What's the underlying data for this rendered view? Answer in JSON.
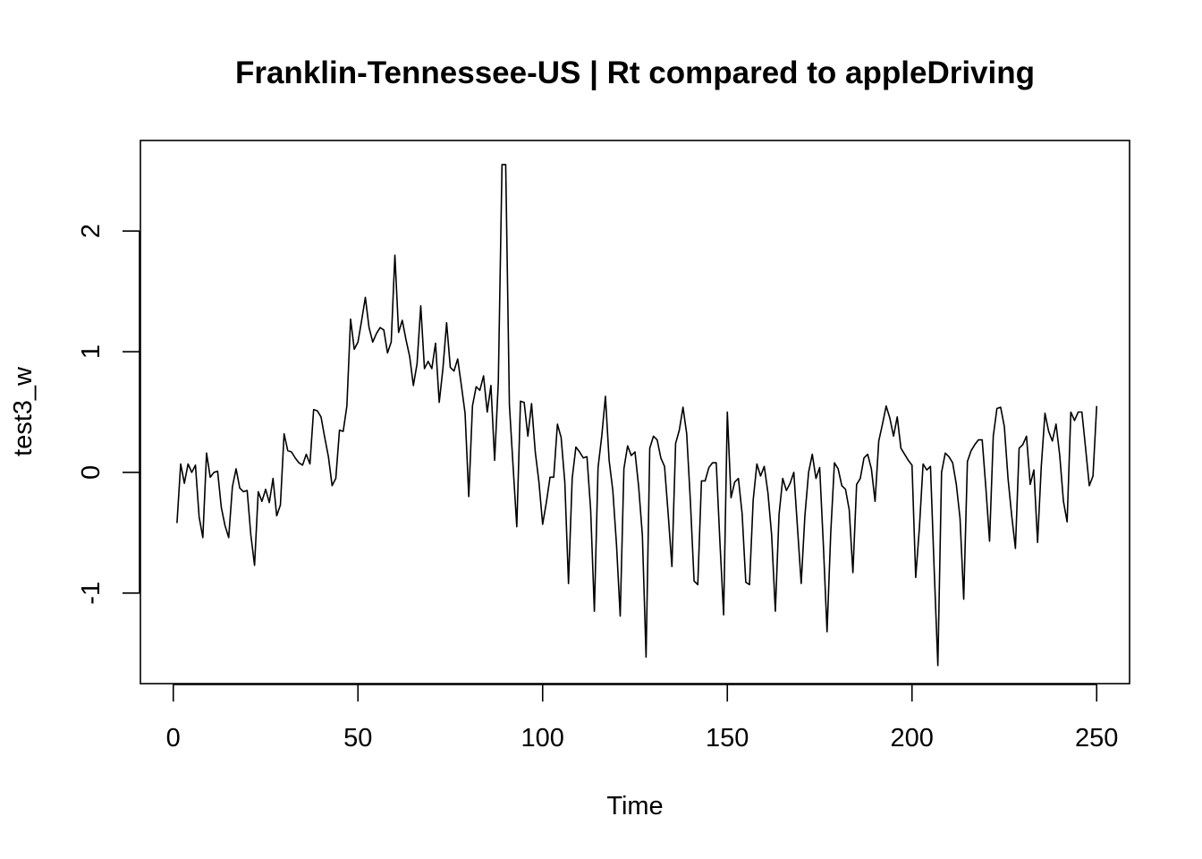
{
  "chart_data": {
    "type": "line",
    "title": "Franklin-Tennessee-US | Rt compared to appleDriving",
    "xlabel": "Time",
    "ylabel": "test3_w",
    "xlim": [
      -8.9,
      258.9
    ],
    "ylim": [
      -1.75,
      2.75
    ],
    "xticks": [
      0,
      50,
      100,
      150,
      200,
      250
    ],
    "yticks": [
      -1,
      0,
      1,
      2
    ],
    "grid": false,
    "line_color": "#000000",
    "series": [
      {
        "x_start": 1,
        "values": [
          -0.42,
          0.07,
          -0.09,
          0.07,
          0.0,
          0.06,
          -0.37,
          -0.54,
          0.16,
          -0.04,
          0.0,
          0.01,
          -0.29,
          -0.44,
          -0.54,
          -0.12,
          0.03,
          -0.13,
          -0.16,
          -0.15,
          -0.52,
          -0.77,
          -0.16,
          -0.24,
          -0.14,
          -0.25,
          -0.05,
          -0.36,
          -0.27,
          0.32,
          0.18,
          0.17,
          0.12,
          0.08,
          0.06,
          0.15,
          0.07,
          0.52,
          0.51,
          0.46,
          0.29,
          0.13,
          -0.11,
          -0.05,
          0.35,
          0.34,
          0.55,
          1.27,
          1.02,
          1.08,
          1.26,
          1.45,
          1.2,
          1.08,
          1.15,
          1.2,
          1.18,
          0.99,
          1.08,
          1.8,
          1.16,
          1.26,
          1.1,
          0.96,
          0.72,
          0.9,
          1.38,
          0.86,
          0.92,
          0.86,
          1.07,
          0.58,
          0.86,
          1.24,
          0.87,
          0.84,
          0.94,
          0.72,
          0.49,
          -0.2,
          0.55,
          0.71,
          0.68,
          0.8,
          0.5,
          0.72,
          0.1,
          0.75,
          2.55,
          2.55,
          0.56,
          0.05,
          -0.45,
          0.59,
          0.58,
          0.3,
          0.57,
          0.17,
          -0.08,
          -0.43,
          -0.25,
          -0.04,
          -0.04,
          0.4,
          0.29,
          -0.08,
          -0.92,
          -0.05,
          0.21,
          0.17,
          0.12,
          0.13,
          -0.31,
          -1.15,
          0.04,
          0.3,
          0.63,
          0.1,
          -0.15,
          -0.6,
          -1.19,
          0.03,
          0.22,
          0.14,
          0.17,
          -0.12,
          -0.52,
          -1.53,
          0.2,
          0.3,
          0.27,
          0.12,
          0.05,
          -0.35,
          -0.78,
          0.24,
          0.35,
          0.54,
          0.32,
          -0.24,
          -0.9,
          -0.93,
          -0.07,
          -0.07,
          0.04,
          0.08,
          0.08,
          -0.58,
          -1.18,
          0.5,
          -0.21,
          -0.08,
          -0.05,
          -0.34,
          -0.91,
          -0.93,
          -0.23,
          0.07,
          -0.03,
          0.05,
          -0.17,
          -0.52,
          -1.15,
          -0.35,
          -0.05,
          -0.15,
          -0.09,
          0.0,
          -0.46,
          -0.92,
          -0.36,
          0.0,
          0.15,
          -0.05,
          0.04,
          -0.6,
          -1.32,
          -0.5,
          0.08,
          0.03,
          -0.11,
          -0.14,
          -0.31,
          -0.83,
          -0.1,
          -0.05,
          0.12,
          0.15,
          0.03,
          -0.24,
          0.26,
          0.4,
          0.55,
          0.45,
          0.3,
          0.46,
          0.2,
          0.15,
          0.1,
          0.06,
          -0.87,
          -0.46,
          0.07,
          0.02,
          0.05,
          -0.8,
          -1.6,
          0.0,
          0.16,
          0.13,
          0.08,
          -0.1,
          -0.38,
          -1.05,
          0.09,
          0.18,
          0.23,
          0.27,
          0.27,
          -0.13,
          -0.57,
          0.3,
          0.53,
          0.54,
          0.38,
          -0.05,
          -0.36,
          -0.63,
          0.2,
          0.23,
          0.3,
          -0.1,
          0.02,
          -0.58,
          0.05,
          0.49,
          0.34,
          0.26,
          0.4,
          0.14,
          -0.24,
          -0.41,
          0.5,
          0.43,
          0.5,
          0.5,
          0.2,
          -0.11,
          -0.03,
          0.55
        ]
      }
    ]
  }
}
